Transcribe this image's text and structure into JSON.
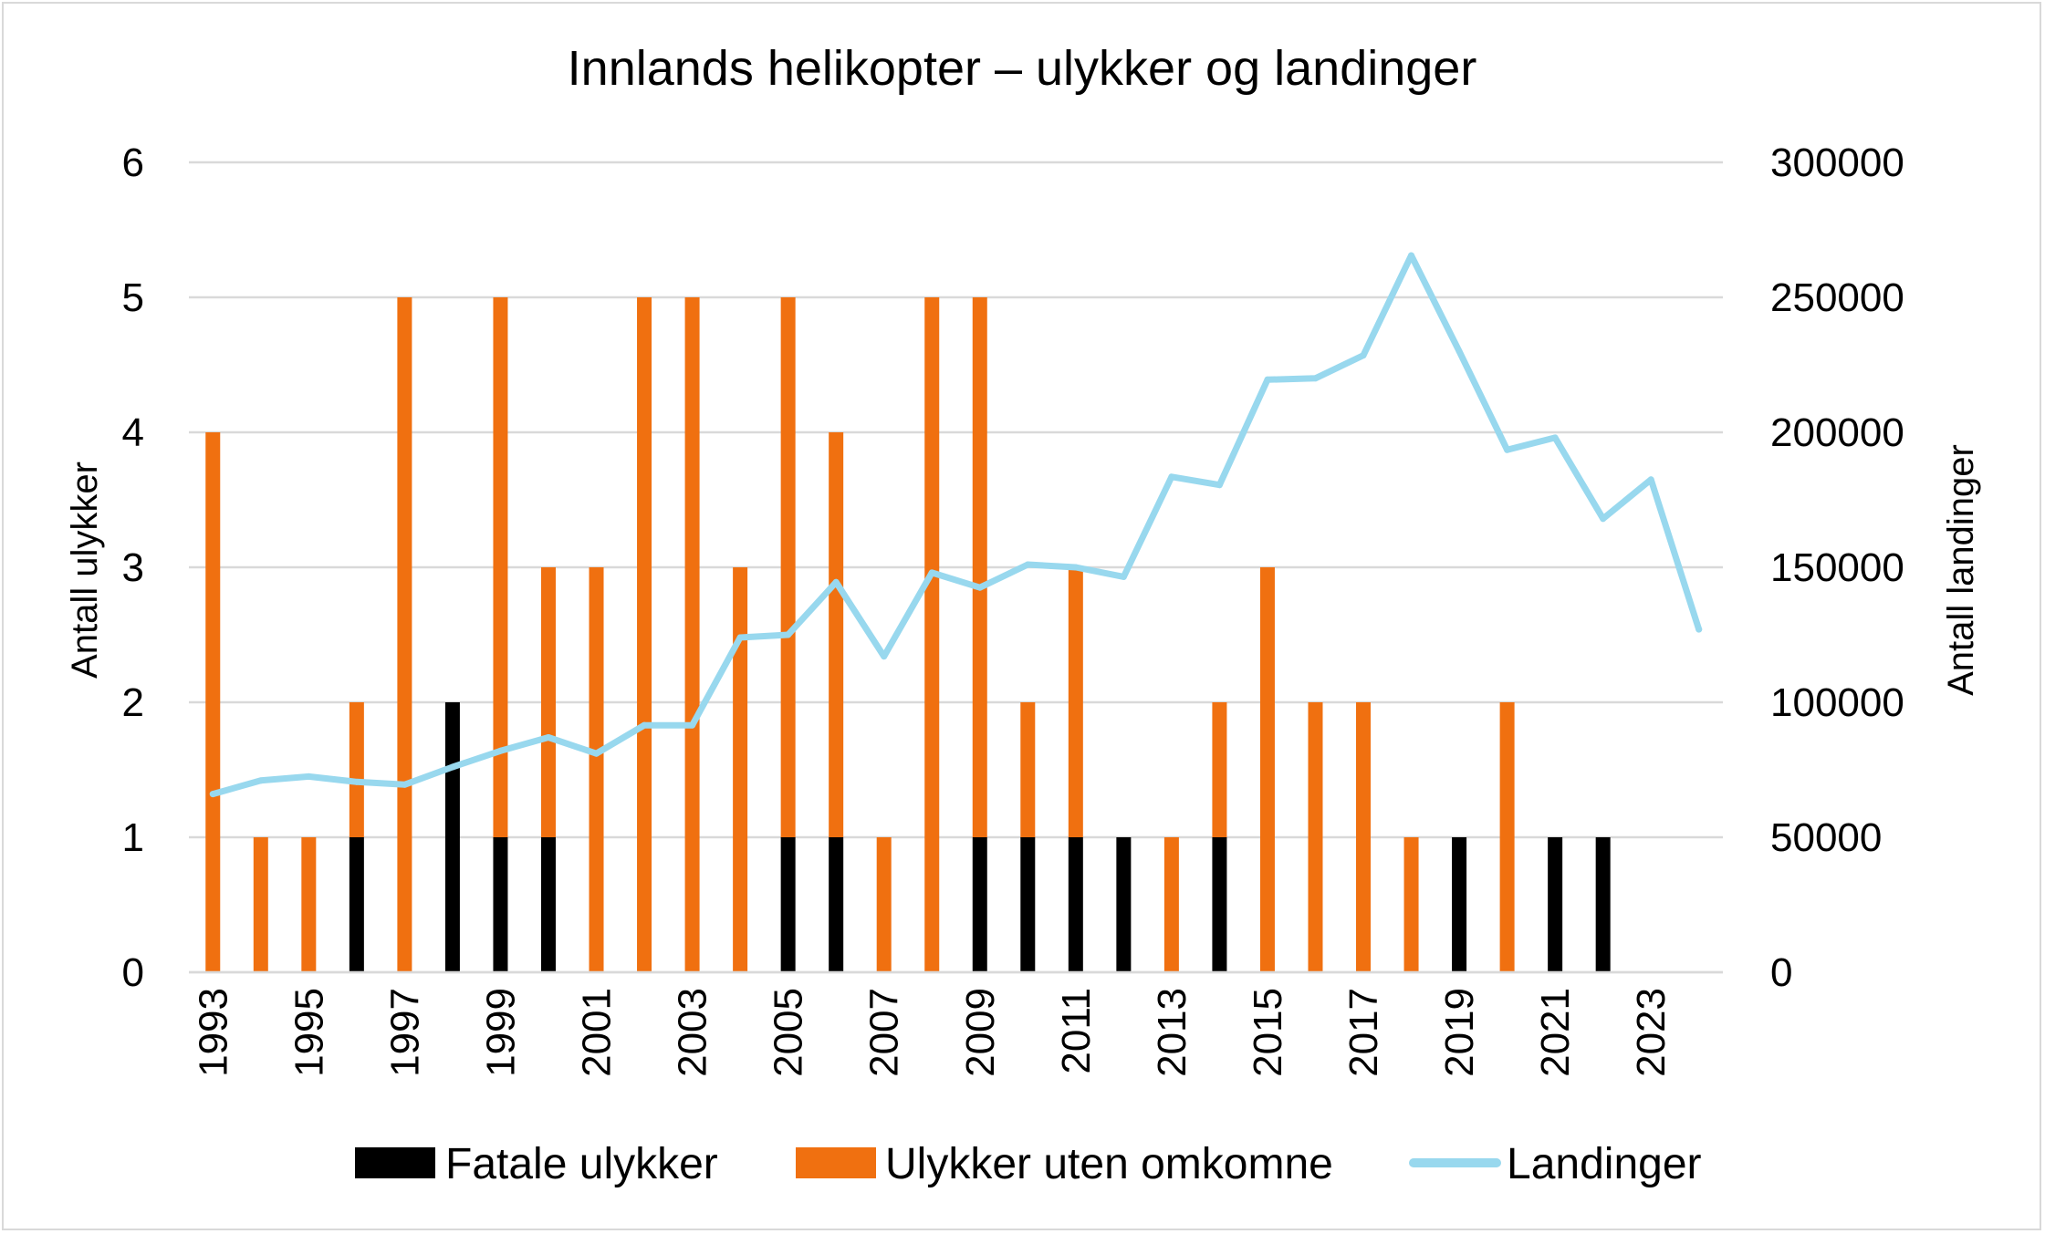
{
  "chart_data": {
    "type": "bar",
    "title": "Innlands helikopter – ulykker og landinger",
    "ylabel_left": "Antall ulykker",
    "ylabel_right": "Antall landinger",
    "ylim_left": [
      0,
      6
    ],
    "yticks_left": [
      "0",
      "1",
      "2",
      "3",
      "4",
      "5",
      "6"
    ],
    "ylim_right": [
      0,
      300000
    ],
    "yticks_right": [
      "0",
      "50000",
      "100000",
      "150000",
      "200000",
      "250000",
      "300000"
    ],
    "categories": [
      "1993",
      "1994",
      "1995",
      "1996",
      "1997",
      "1998",
      "1999",
      "2000",
      "2001",
      "2002",
      "2003",
      "2004",
      "2005",
      "2006",
      "2007",
      "2008",
      "2009",
      "2010",
      "2011",
      "2012",
      "2013",
      "2014",
      "2015",
      "2016",
      "2017",
      "2018",
      "2019",
      "2020",
      "2021",
      "2022",
      "2023",
      "2024"
    ],
    "x_tick_labels": [
      "1993",
      "1995",
      "1997",
      "1999",
      "2001",
      "2003",
      "2005",
      "2007",
      "2009",
      "2011",
      "2013",
      "2015",
      "2017",
      "2019",
      "2021",
      "2023"
    ],
    "grid": true,
    "legend_position": "bottom",
    "series": [
      {
        "name": "Fatale ulykker",
        "kind": "bar-stacked",
        "axis": "left",
        "color": "#000000",
        "values": [
          0,
          0,
          0,
          1,
          0,
          2,
          1,
          1,
          0,
          0,
          0,
          0,
          1,
          1,
          0,
          0,
          1,
          1,
          1,
          1,
          0,
          1,
          0,
          0,
          0,
          0,
          1,
          0,
          1,
          1,
          0,
          0
        ]
      },
      {
        "name": "Ulykker uten omkomne",
        "kind": "bar-stacked",
        "axis": "left",
        "color": "#f07010",
        "values": [
          4,
          1,
          1,
          1,
          5,
          0,
          4,
          2,
          3,
          5,
          5,
          3,
          4,
          3,
          1,
          5,
          4,
          1,
          2,
          0,
          1,
          1,
          3,
          2,
          2,
          1,
          0,
          2,
          0,
          0,
          0,
          0
        ]
      },
      {
        "name": "Landinger",
        "kind": "line",
        "axis": "right",
        "color": "#98d8ee",
        "values": [
          66000,
          71000,
          72500,
          70500,
          69500,
          76000,
          82000,
          87000,
          81000,
          91500,
          91500,
          124000,
          125000,
          144500,
          117000,
          148000,
          142500,
          151000,
          150000,
          146500,
          183500,
          180500,
          219500,
          220000,
          228500,
          265500,
          230000,
          193500,
          198000,
          168000,
          182500,
          127000
        ]
      }
    ]
  }
}
